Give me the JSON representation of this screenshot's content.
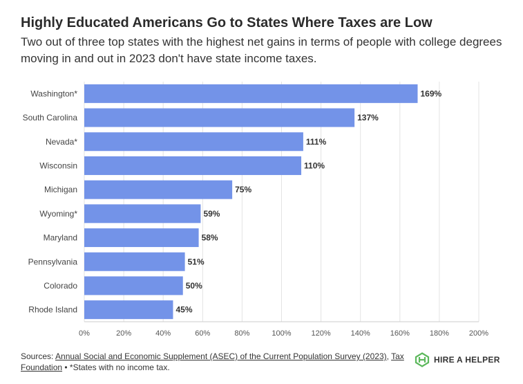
{
  "header": {
    "title": "Highly Educated Americans Go to States Where Taxes are Low",
    "subtitle": "Two out of three top states with the highest net gains in terms of people with college degrees moving in and out in 2023 don't have state income taxes."
  },
  "chart_data": {
    "type": "bar",
    "orientation": "horizontal",
    "categories": [
      "Washington*",
      "South Carolina",
      "Nevada*",
      "Wisconsin",
      "Michigan",
      "Wyoming*",
      "Maryland",
      "Pennsylvania",
      "Colorado",
      "Rhode Island"
    ],
    "values": [
      169,
      137,
      111,
      110,
      75,
      59,
      58,
      51,
      50,
      45
    ],
    "value_labels": [
      "169%",
      "137%",
      "111%",
      "110%",
      "75%",
      "59%",
      "58%",
      "51%",
      "50%",
      "45%"
    ],
    "x_ticks": [
      0,
      20,
      40,
      60,
      80,
      100,
      120,
      140,
      160,
      180,
      200
    ],
    "x_tick_labels": [
      "0%",
      "20%",
      "40%",
      "60%",
      "80%",
      "100%",
      "120%",
      "140%",
      "160%",
      "180%",
      "200%"
    ],
    "xlim": [
      0,
      200
    ],
    "grid": true,
    "bar_color": "#7393e8"
  },
  "footer": {
    "sources_prefix": "Sources: ",
    "link1": "Annual Social and Economic Supplement (ASEC) of the Current Population Survey (2023)",
    "separator": ", ",
    "link2": "Tax Foundation",
    "note": " • *States with no income tax."
  },
  "logo": {
    "text": "HIRE A HELPER",
    "icon": "hireahelper-logo-icon",
    "color": "#5cb85c"
  }
}
